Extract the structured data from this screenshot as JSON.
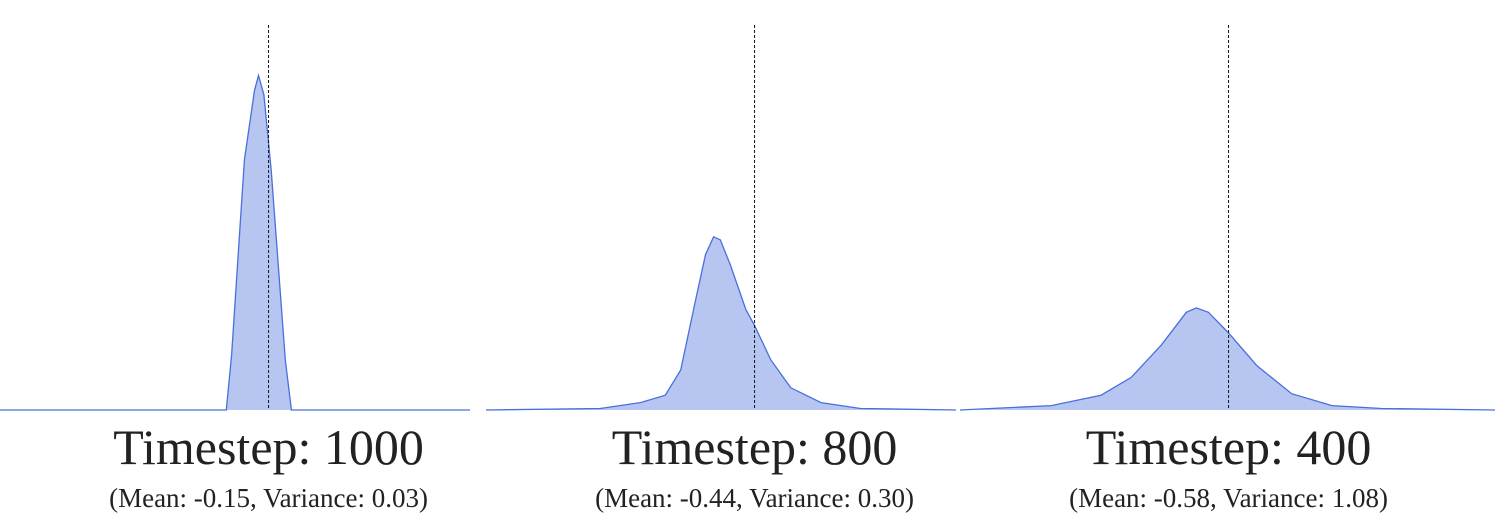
{
  "chart_data": [
    {
      "type": "area",
      "title": "Timestep: 1000",
      "subtitle": "(Mean: -0.15, Variance: 0.03)",
      "x": [
        -4,
        -0.63,
        -0.55,
        -0.36,
        -0.21,
        -0.15,
        -0.07,
        0.04,
        0.25,
        0.34,
        3
      ],
      "values": [
        0,
        0,
        0.37,
        1.69,
        2.16,
        2.26,
        2.13,
        1.62,
        0.34,
        0,
        0
      ],
      "xlim": [
        -4,
        3
      ],
      "ylim": [
        0,
        2.5
      ],
      "vline": 0,
      "color": "#4a6fdc"
    },
    {
      "type": "area",
      "title": "Timestep: 800",
      "subtitle": "(Mean: -0.44, Variance: 0.30)",
      "x": [
        -4,
        -2.3,
        -1.7,
        -1.33,
        -1.1,
        -0.88,
        -0.73,
        -0.61,
        -0.51,
        -0.36,
        -0.13,
        0,
        0.24,
        0.54,
        0.99,
        1.58,
        3
      ],
      "values": [
        0,
        0.01,
        0.05,
        0.1,
        0.27,
        0.74,
        1.05,
        1.17,
        1.15,
        0.98,
        0.68,
        0.57,
        0.34,
        0.15,
        0.05,
        0.01,
        0
      ],
      "xlim": [
        -4,
        3
      ],
      "ylim": [
        0,
        2.5
      ],
      "vline": 0,
      "color": "#4a6fdc"
    },
    {
      "type": "area",
      "title": "Timestep: 400",
      "subtitle": "(Mean: -0.58, Variance: 1.08)",
      "x": [
        -4,
        -2.64,
        -1.9,
        -1.45,
        -1,
        -0.63,
        -0.48,
        -0.3,
        0,
        0.42,
        0.94,
        1.54,
        2.28,
        4
      ],
      "values": [
        0,
        0.03,
        0.1,
        0.22,
        0.44,
        0.66,
        0.69,
        0.66,
        0.52,
        0.3,
        0.11,
        0.03,
        0.01,
        0
      ],
      "xlim": [
        -4,
        4
      ],
      "ylim": [
        0,
        2.5
      ],
      "vline": 0,
      "color": "#4a6fdc"
    }
  ]
}
